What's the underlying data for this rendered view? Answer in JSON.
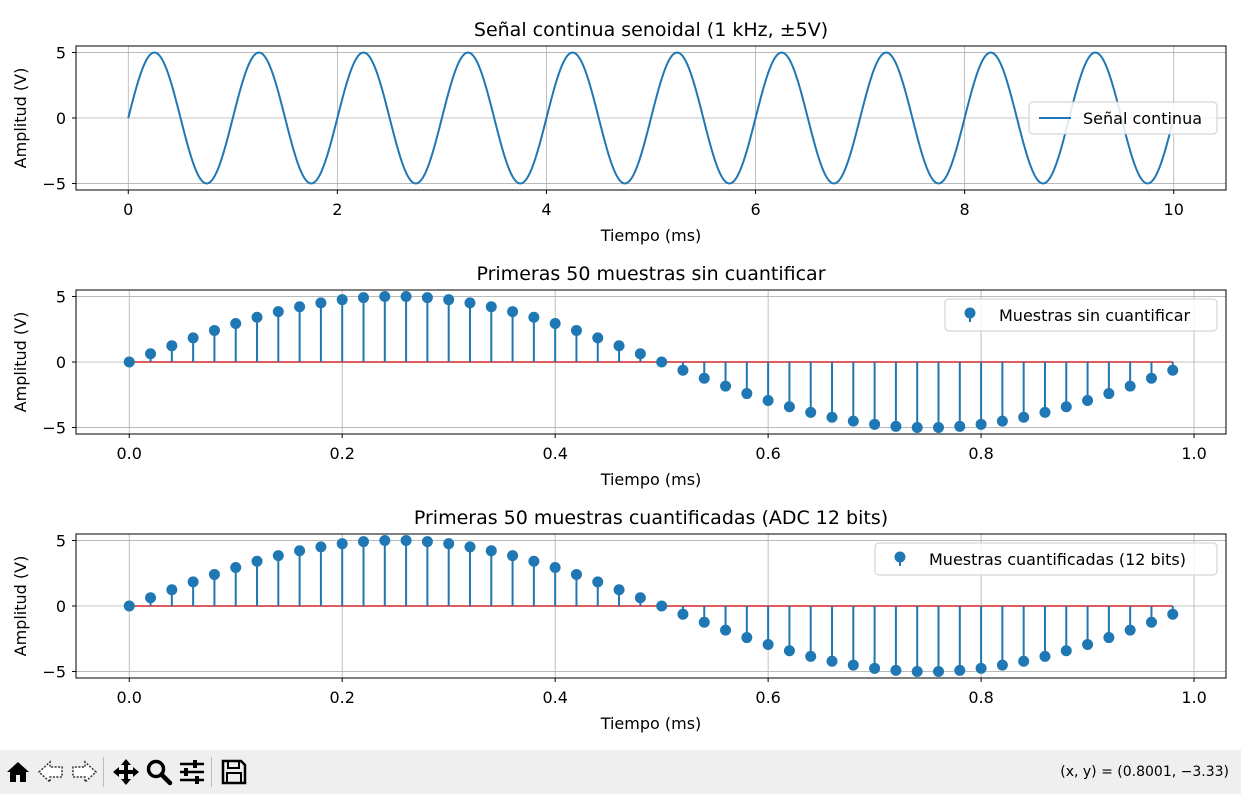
{
  "chart_data": [
    {
      "type": "line",
      "title": "Señal continua senoidal (1 kHz, ±5V)",
      "xlabel": "Tiempo (ms)",
      "ylabel": "Amplitud (V)",
      "xlim": [
        -0.5,
        10.5
      ],
      "ylim": [
        -5.5,
        5.5
      ],
      "xticks": [
        0,
        2,
        4,
        6,
        8,
        10
      ],
      "xtick_labels": [
        "0",
        "2",
        "4",
        "6",
        "8",
        "10"
      ],
      "yticks": [
        -5,
        0,
        5
      ],
      "ytick_labels": [
        "−5",
        "0",
        "5"
      ],
      "grid": true,
      "legend_position": "center-right",
      "series": [
        {
          "name": "Señal continua",
          "color": "#1f77b4",
          "amplitude": 5,
          "frequency_khz": 1,
          "x_range": [
            0,
            10
          ]
        }
      ]
    },
    {
      "type": "stem",
      "title": "Primeras 50 muestras sin cuantificar",
      "xlabel": "Tiempo (ms)",
      "ylabel": "Amplitud (V)",
      "xlim": [
        -0.05,
        1.03
      ],
      "ylim": [
        -5.5,
        5.5
      ],
      "xticks": [
        0,
        0.2,
        0.4,
        0.6,
        0.8,
        1.0
      ],
      "xtick_labels": [
        "0.0",
        "0.2",
        "0.4",
        "0.6",
        "0.8",
        "1.0"
      ],
      "yticks": [
        -5,
        0,
        5
      ],
      "ytick_labels": [
        "−5",
        "0",
        "5"
      ],
      "grid": true,
      "legend_position": "top-right",
      "series": [
        {
          "name": "Muestras sin cuantificar",
          "color": "#1f77b4",
          "x": [
            0,
            0.02,
            0.04,
            0.06,
            0.08,
            0.1,
            0.12,
            0.14,
            0.16,
            0.18,
            0.2,
            0.22,
            0.24,
            0.26,
            0.28,
            0.3,
            0.32,
            0.34,
            0.36,
            0.38,
            0.4,
            0.42,
            0.44,
            0.46,
            0.48,
            0.5,
            0.52,
            0.54,
            0.56,
            0.58,
            0.6,
            0.62,
            0.64,
            0.66,
            0.68,
            0.7,
            0.72,
            0.74,
            0.76,
            0.78,
            0.8,
            0.82,
            0.84,
            0.86,
            0.88,
            0.9,
            0.92,
            0.94,
            0.96,
            0.98
          ],
          "y": [
            0.0,
            0.63,
            1.24,
            1.84,
            2.41,
            2.94,
            3.42,
            3.85,
            4.22,
            4.52,
            4.76,
            4.92,
            5.0,
            5.0,
            4.92,
            4.76,
            4.52,
            4.22,
            3.85,
            3.42,
            2.94,
            2.41,
            1.84,
            1.24,
            0.63,
            0.0,
            -0.63,
            -1.24,
            -1.84,
            -2.41,
            -2.94,
            -3.42,
            -3.85,
            -4.22,
            -4.52,
            -4.76,
            -4.92,
            -5.0,
            -5.0,
            -4.92,
            -4.76,
            -4.52,
            -4.22,
            -3.85,
            -3.42,
            -2.94,
            -2.41,
            -1.84,
            -1.24,
            -0.63
          ]
        }
      ]
    },
    {
      "type": "stem",
      "title": "Primeras 50 muestras cuantificadas (ADC 12 bits)",
      "xlabel": "Tiempo (ms)",
      "ylabel": "Amplitud (V)",
      "xlim": [
        -0.05,
        1.03
      ],
      "ylim": [
        -5.5,
        5.5
      ],
      "xticks": [
        0,
        0.2,
        0.4,
        0.6,
        0.8,
        1.0
      ],
      "xtick_labels": [
        "0.0",
        "0.2",
        "0.4",
        "0.6",
        "0.8",
        "1.0"
      ],
      "yticks": [
        -5,
        0,
        5
      ],
      "ytick_labels": [
        "−5",
        "0",
        "5"
      ],
      "grid": true,
      "legend_position": "top-right",
      "series": [
        {
          "name": "Muestras cuantificadas (12 bits)",
          "color": "#1f77b4",
          "x": [
            0,
            0.02,
            0.04,
            0.06,
            0.08,
            0.1,
            0.12,
            0.14,
            0.16,
            0.18,
            0.2,
            0.22,
            0.24,
            0.26,
            0.28,
            0.3,
            0.32,
            0.34,
            0.36,
            0.38,
            0.4,
            0.42,
            0.44,
            0.46,
            0.48,
            0.5,
            0.52,
            0.54,
            0.56,
            0.58,
            0.6,
            0.62,
            0.64,
            0.66,
            0.68,
            0.7,
            0.72,
            0.74,
            0.76,
            0.78,
            0.8,
            0.82,
            0.84,
            0.86,
            0.88,
            0.9,
            0.92,
            0.94,
            0.96,
            0.98
          ],
          "y": [
            0.0,
            0.63,
            1.24,
            1.84,
            2.41,
            2.94,
            3.42,
            3.85,
            4.22,
            4.52,
            4.76,
            4.92,
            5.0,
            5.0,
            4.92,
            4.76,
            4.52,
            4.22,
            3.85,
            3.42,
            2.94,
            2.41,
            1.84,
            1.24,
            0.63,
            0.0,
            -0.63,
            -1.24,
            -1.84,
            -2.41,
            -2.94,
            -3.42,
            -3.85,
            -4.22,
            -4.52,
            -4.76,
            -4.92,
            -5.0,
            -5.0,
            -4.92,
            -4.76,
            -4.52,
            -4.22,
            -3.85,
            -3.42,
            -2.94,
            -2.41,
            -1.84,
            -1.24,
            -0.63
          ]
        }
      ]
    }
  ],
  "toolbar": {
    "icons": [
      "home-icon",
      "back-icon",
      "forward-icon",
      "pan-icon",
      "zoom-icon",
      "configure-subplots-icon",
      "save-icon"
    ],
    "coords": "(x, y) = (0.8001, −3.33)"
  }
}
